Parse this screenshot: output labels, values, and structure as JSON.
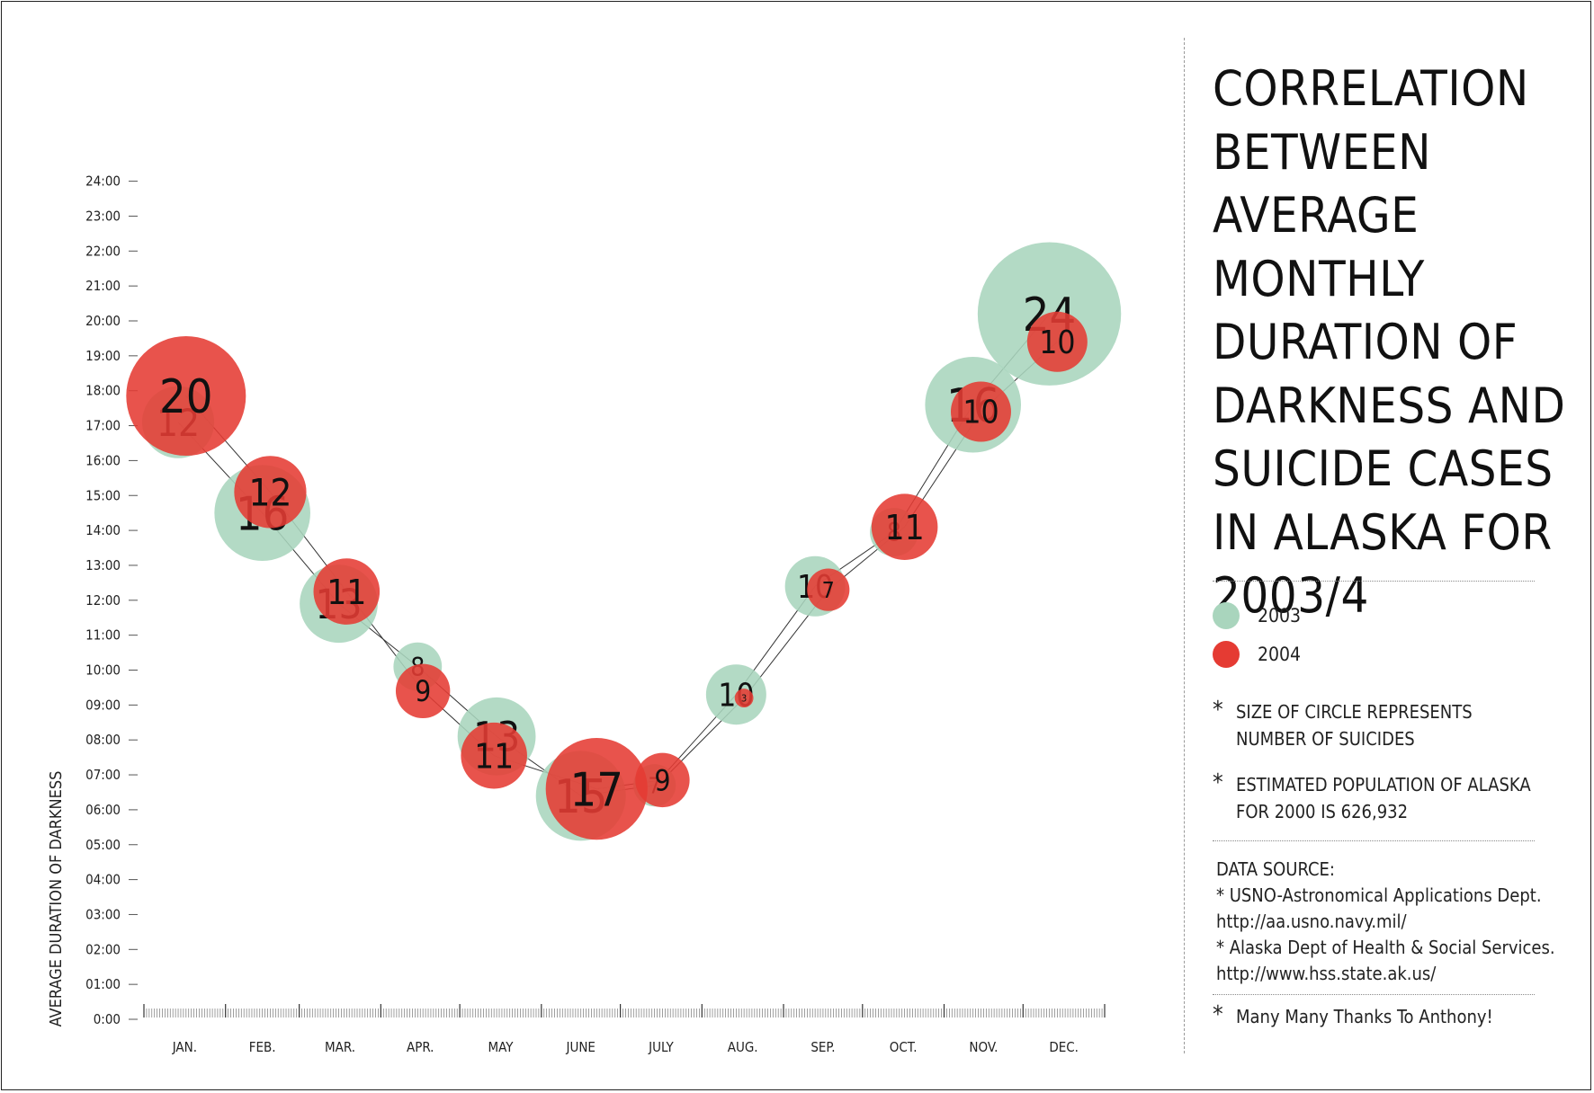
{
  "title": "CORRELATION\nBETWEEN AVERAGE\nMONTHLY\nDURATION OF\nDARKNESS AND\nSUICIDE CASES\nIN ALASKA FOR\n2003/4",
  "legend": [
    {
      "label": "2003",
      "color": "#a9d5bd"
    },
    {
      "label": "2004",
      "color": "#e53b33"
    }
  ],
  "notes": [
    "SIZE OF CIRCLE REPRESENTS\nNUMBER OF SUICIDES",
    "ESTIMATED POPULATION OF ALASKA\nFOR 2000 IS 626,932"
  ],
  "data_source": {
    "title": "DATA SOURCE:",
    "items": [
      "* USNO-Astronomical Applications Dept.\n   http://aa.usno.navy.mil/",
      "* Alaska Dept of Health & Social Services.\n   http://www.hss.state.ak.us/"
    ]
  },
  "thanks": "Many Many Thanks To Anthony!",
  "chart_data": {
    "type": "scatter",
    "subtype": "bubble",
    "title": "CORRELATION BETWEEN AVERAGE MONTHLY DURATION OF DARKNESS AND SUICIDE CASES IN ALASKA FOR 2003/4",
    "xlabel": "",
    "ylabel": "AVERAGE DURATION OF DARKNESS",
    "categories": [
      "JAN.",
      "FEB.",
      "MAR.",
      "APR.",
      "MAY",
      "JUNE",
      "JULY",
      "AUG.",
      "SEP.",
      "OCT.",
      "NOV.",
      "DEC."
    ],
    "y_tick_labels": [
      "0:00",
      "01:00",
      "02:00",
      "03:00",
      "04:00",
      "05:00",
      "06:00",
      "07:00",
      "08:00",
      "09:00",
      "10:00",
      "11:00",
      "12:00",
      "13:00",
      "14:00",
      "15:00",
      "16:00",
      "17:00",
      "18:00",
      "19:00",
      "20:00",
      "21:00",
      "22:00",
      "23:00",
      "24:00"
    ],
    "ylim": [
      0,
      24
    ],
    "y_unit": "hours",
    "series": [
      {
        "name": "2003",
        "color": "#a9d5bd",
        "x_days": [
          13,
          45,
          74,
          104,
          134,
          166,
          194,
          225,
          255,
          285,
          315,
          344
        ],
        "darkness_hours": [
          17.1,
          14.5,
          11.9,
          10.1,
          8.1,
          6.4,
          6.7,
          9.3,
          12.4,
          13.95,
          17.6,
          20.2
        ],
        "suicides": [
          12,
          16,
          13,
          8,
          13,
          15,
          7,
          10,
          10,
          8,
          16,
          24
        ]
      },
      {
        "name": "2004",
        "color": "#e53b33",
        "x_days": [
          16,
          48,
          77,
          106,
          133,
          172,
          197,
          228,
          260,
          289,
          318,
          347
        ],
        "darkness_hours": [
          17.85,
          15.1,
          12.25,
          9.4,
          7.55,
          6.6,
          6.85,
          9.2,
          12.3,
          14.1,
          17.4,
          19.4
        ],
        "suicides": [
          20,
          12,
          11,
          9,
          11,
          17,
          9,
          3,
          7,
          11,
          10,
          10
        ]
      }
    ],
    "legend": "right",
    "grid": false
  }
}
